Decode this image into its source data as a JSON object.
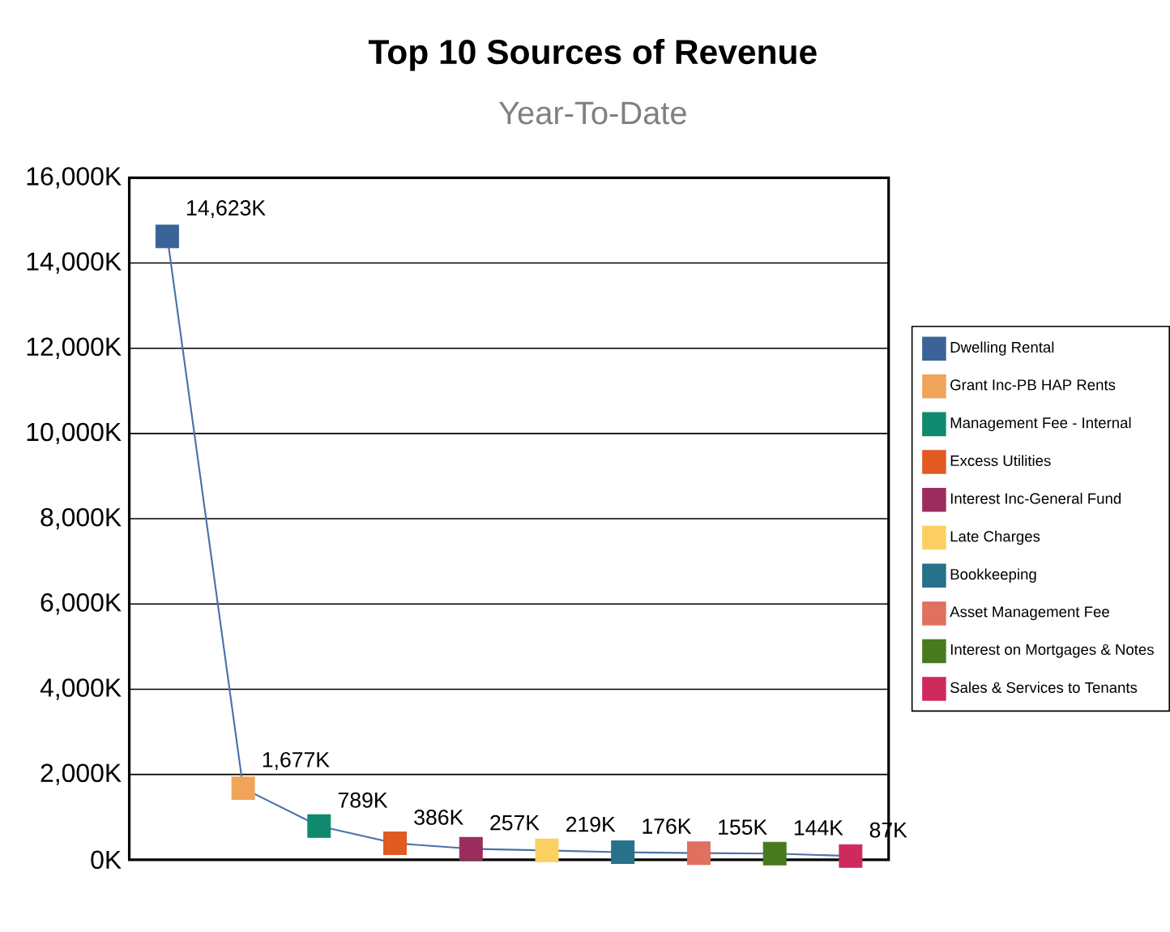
{
  "chart_data": {
    "type": "line",
    "title": "Top 10 Sources of Revenue",
    "subtitle": "Year-To-Date",
    "categories": [
      null,
      null,
      null,
      null,
      null,
      null,
      null,
      null,
      null,
      null
    ],
    "series": [
      {
        "color": "#4a72a8",
        "marker": "none",
        "values": [
          14623,
          1677,
          789,
          386,
          257,
          219,
          176,
          155,
          144,
          87
        ],
        "value_labels": [
          "14,623K",
          "1,677K",
          "789K",
          "386K",
          "257K",
          "219K",
          "176K",
          "155K",
          "144K",
          "87K"
        ]
      },
      {
        "type": "scatter",
        "name": "Dwelling Rental",
        "color": "#3a6398",
        "values": [
          14623,
          null,
          null,
          null,
          null,
          null,
          null,
          null,
          null,
          null
        ]
      },
      {
        "type": "scatter",
        "name": "Grant Inc-PB HAP Rents",
        "color": "#f0a45a",
        "values": [
          null,
          1677,
          null,
          null,
          null,
          null,
          null,
          null,
          null,
          null
        ]
      },
      {
        "type": "scatter",
        "name": "Management Fee - Internal",
        "color": "#0f8a6e",
        "values": [
          null,
          null,
          789,
          null,
          null,
          null,
          null,
          null,
          null,
          null
        ]
      },
      {
        "type": "scatter",
        "name": "Excess Utilities",
        "color": "#e05a22",
        "values": [
          null,
          null,
          null,
          386,
          null,
          null,
          null,
          null,
          null,
          null
        ]
      },
      {
        "type": "scatter",
        "name": "Interest Inc-General Fund",
        "color": "#9b2d5e",
        "values": [
          null,
          null,
          null,
          null,
          257,
          null,
          null,
          null,
          null,
          null
        ]
      },
      {
        "type": "scatter",
        "name": "Late Charges",
        "color": "#fbcf62",
        "values": [
          null,
          null,
          null,
          null,
          null,
          219,
          null,
          null,
          null,
          null
        ]
      },
      {
        "type": "scatter",
        "name": "Bookkeeping",
        "color": "#27718a",
        "values": [
          null,
          null,
          null,
          null,
          null,
          null,
          176,
          null,
          null,
          null
        ]
      },
      {
        "type": "scatter",
        "name": "Asset Management Fee",
        "color": "#e0705f",
        "values": [
          null,
          null,
          null,
          null,
          null,
          null,
          null,
          155,
          null,
          null
        ]
      },
      {
        "type": "scatter",
        "name": "Interest on Mortgages & Notes",
        "color": "#477a1e",
        "values": [
          null,
          null,
          null,
          null,
          null,
          null,
          null,
          null,
          144,
          null
        ]
      },
      {
        "type": "scatter",
        "name": "Sales & Services to Tenants",
        "color": "#cf2a5c",
        "values": [
          null,
          null,
          null,
          null,
          null,
          null,
          null,
          null,
          null,
          87
        ]
      }
    ],
    "marker": "square",
    "ylim": [
      0,
      16000
    ],
    "yticks": [
      {
        "value": 0,
        "label": "0K"
      },
      {
        "value": 2000,
        "label": "2,000K"
      },
      {
        "value": 4000,
        "label": "4,000K"
      },
      {
        "value": 6000,
        "label": "6,000K"
      },
      {
        "value": 8000,
        "label": "8,000K"
      },
      {
        "value": 10000,
        "label": "10,000K"
      },
      {
        "value": 12000,
        "label": "12,000K"
      },
      {
        "value": 14000,
        "label": "14,000K"
      },
      {
        "value": 16000,
        "label": "16,000K"
      }
    ],
    "tick_labels": "y",
    "grid": "y",
    "legend": "right"
  }
}
